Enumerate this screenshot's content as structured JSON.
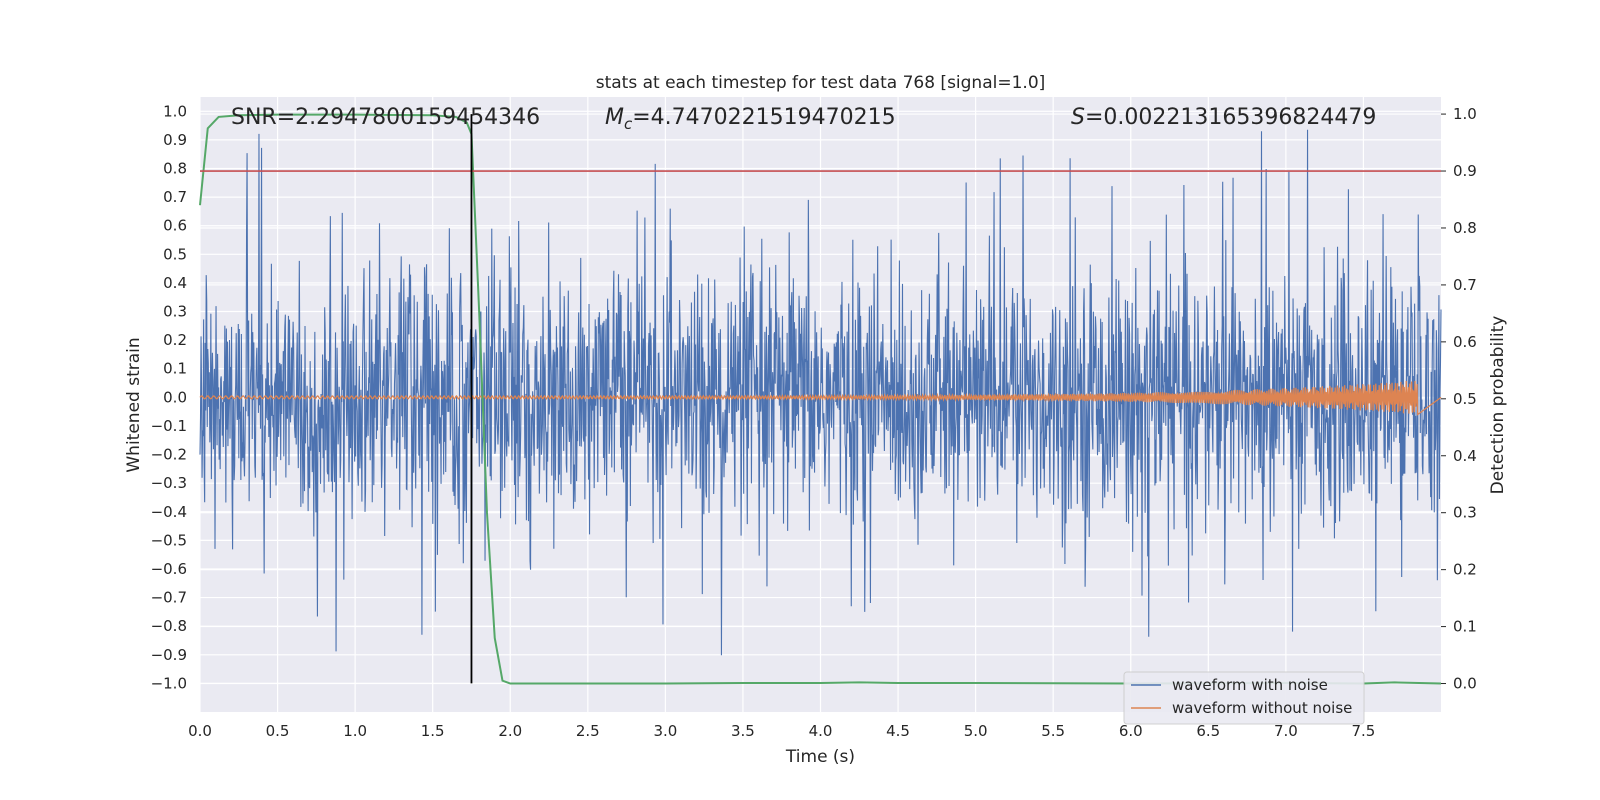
{
  "chart_data": {
    "type": "line",
    "title": "stats at each timestep for test data 768 [signal=1.0]",
    "xlabel": "Time (s)",
    "ylabel": "Whitened strain",
    "y2label": "Detection probability",
    "xlim": [
      0.0,
      8.0
    ],
    "ylim": [
      -1.1,
      1.05
    ],
    "y2lim": [
      -0.05,
      1.03
    ],
    "xticks": [
      "0.0",
      "0.5",
      "1.0",
      "1.5",
      "2.0",
      "2.5",
      "3.0",
      "3.5",
      "4.0",
      "4.5",
      "5.0",
      "5.5",
      "6.0",
      "6.5",
      "7.0",
      "7.5"
    ],
    "yticks": [
      "1.0",
      "0.9",
      "0.8",
      "0.7",
      "0.6",
      "0.5",
      "0.4",
      "0.3",
      "0.2",
      "0.1",
      "0.0",
      "−0.1",
      "−0.2",
      "−0.3",
      "−0.4",
      "−0.5",
      "−0.6",
      "−0.7",
      "−0.8",
      "−0.9",
      "−1.0"
    ],
    "y2ticks": [
      "1.0",
      "0.9",
      "0.8",
      "0.7",
      "0.6",
      "0.5",
      "0.4",
      "0.3",
      "0.2",
      "0.1",
      "0.0"
    ],
    "annotations": {
      "snr": "SNR=2.2947800159454346",
      "mc_symbol": "M",
      "mc_sub": "c",
      "mc_value": "=4.7470221519470215",
      "s_symbol": "S",
      "s_value": "=0.002213165396824479"
    },
    "threshold": 0.9,
    "detection_time": 1.75,
    "grid": true,
    "legend_position": "lower-right",
    "series": [
      {
        "name": "waveform with noise",
        "color": "#4c72b0",
        "envelope_typical": 0.4,
        "envelope_peak": 0.95
      },
      {
        "name": "waveform without noise",
        "color": "#dd8452",
        "amplitude_start": 0.005,
        "amplitude_end": 0.06,
        "x_end": 7.85
      },
      {
        "color": "#55a868",
        "x": [
          0.0,
          0.05,
          0.12,
          0.25,
          0.5,
          1.0,
          1.5,
          1.65,
          1.72,
          1.75,
          1.8,
          1.85,
          1.9,
          1.95,
          2.0,
          2.5,
          3.0,
          3.5,
          4.0,
          4.25,
          4.5,
          5.0,
          6.0,
          7.0,
          7.5,
          7.7,
          8.0
        ],
        "y": [
          0.84,
          0.975,
          0.995,
          0.998,
          0.999,
          0.999,
          0.998,
          0.995,
          0.985,
          0.965,
          0.65,
          0.3,
          0.08,
          0.005,
          0.0,
          0.0,
          0.0,
          0.001,
          0.001,
          0.002,
          0.001,
          0.001,
          0.0,
          0.001,
          0.0,
          0.002,
          0.0
        ]
      },
      {
        "color": "#c44e52",
        "type": "threshold-line"
      }
    ]
  }
}
